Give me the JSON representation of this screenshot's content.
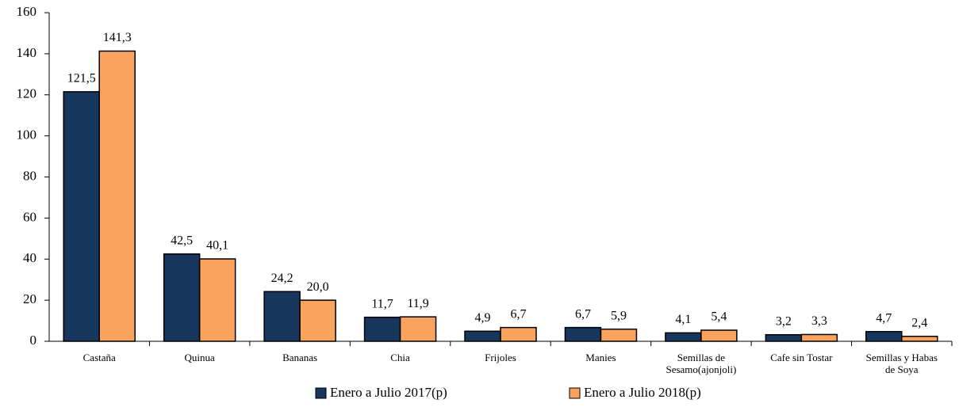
{
  "chart_data": {
    "type": "bar",
    "categories": [
      [
        "Castaña"
      ],
      [
        "Quinua"
      ],
      [
        "Bananas"
      ],
      [
        "Chia"
      ],
      [
        "Frijoles"
      ],
      [
        "Manies"
      ],
      [
        "Semillas de",
        "Sesamo(ajonjoli)"
      ],
      [
        "Cafe sin Tostar"
      ],
      [
        "Semillas y Habas",
        "de Soya"
      ]
    ],
    "series": [
      {
        "name": "Enero a Julio 2017(p)",
        "color": "#17375e",
        "values": [
          121.5,
          42.5,
          24.2,
          11.7,
          4.9,
          6.7,
          4.1,
          3.2,
          4.7
        ],
        "value_labels": [
          "121,5",
          "42,5",
          "24,2",
          "11,7",
          "4,9",
          "6,7",
          "4,1",
          "3,2",
          "4,7"
        ]
      },
      {
        "name": "Enero a Julio 2018(p)",
        "color": "#f9a35f",
        "values": [
          141.3,
          40.1,
          20.0,
          11.9,
          6.7,
          5.9,
          5.4,
          3.3,
          2.4
        ],
        "value_labels": [
          "141,3",
          "40,1",
          "20,0",
          "11,9",
          "6,7",
          "5,9",
          "5,4",
          "3,3",
          "2,4"
        ]
      }
    ],
    "ylim": [
      0,
      160
    ],
    "yticks": [
      0,
      20,
      40,
      60,
      80,
      100,
      120,
      140,
      160
    ],
    "grid": false,
    "legend": "bottom"
  }
}
